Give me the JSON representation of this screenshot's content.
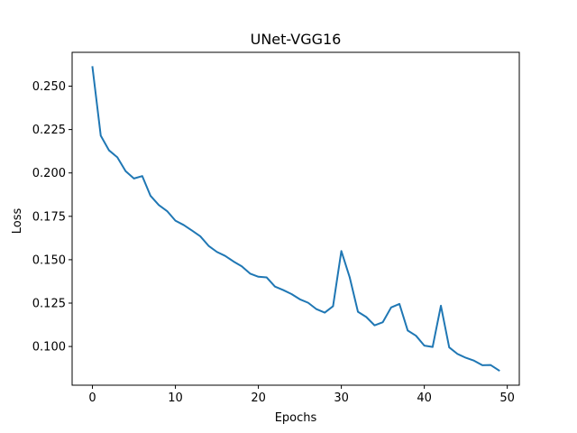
{
  "chart_data": {
    "type": "line",
    "title": "UNet-VGG16",
    "xlabel": "Epochs",
    "ylabel": "Loss",
    "xlim": [
      -2.45,
      51.45
    ],
    "ylim": [
      0.0777,
      0.2695
    ],
    "xticks": [
      0,
      10,
      20,
      30,
      40,
      50
    ],
    "yticks": [
      0.1,
      0.125,
      0.15,
      0.175,
      0.2,
      0.225,
      0.25
    ],
    "ytick_labels": [
      "0.100",
      "0.125",
      "0.150",
      "0.175",
      "0.200",
      "0.225",
      "0.250"
    ],
    "grid": false,
    "line_color": "#1f77b4",
    "series": [
      {
        "x": [
          0,
          1,
          2,
          3,
          4,
          5,
          6,
          7,
          8,
          9,
          10,
          11,
          12,
          13,
          14,
          15,
          16,
          17,
          18,
          19,
          20,
          21,
          22,
          23,
          24,
          25,
          26,
          27,
          28,
          29,
          30,
          31,
          32,
          33,
          34,
          35,
          36,
          37,
          38,
          39,
          40,
          41,
          42,
          43,
          44,
          45,
          46,
          47,
          48,
          49
        ],
        "values": [
          0.261,
          0.2215,
          0.213,
          0.209,
          0.201,
          0.1968,
          0.1982,
          0.1868,
          0.1815,
          0.178,
          0.1725,
          0.17,
          0.1668,
          0.1635,
          0.158,
          0.1545,
          0.1522,
          0.149,
          0.1462,
          0.142,
          0.1402,
          0.1398,
          0.1345,
          0.1325,
          0.1302,
          0.1272,
          0.1252,
          0.1215,
          0.1195,
          0.1232,
          0.155,
          0.14,
          0.12,
          0.117,
          0.1122,
          0.114,
          0.1225,
          0.1245,
          0.1092,
          0.1062,
          0.1005,
          0.0997,
          0.1235,
          0.0995,
          0.0957,
          0.0935,
          0.0918,
          0.0892,
          0.0893,
          0.0862
        ]
      }
    ]
  }
}
